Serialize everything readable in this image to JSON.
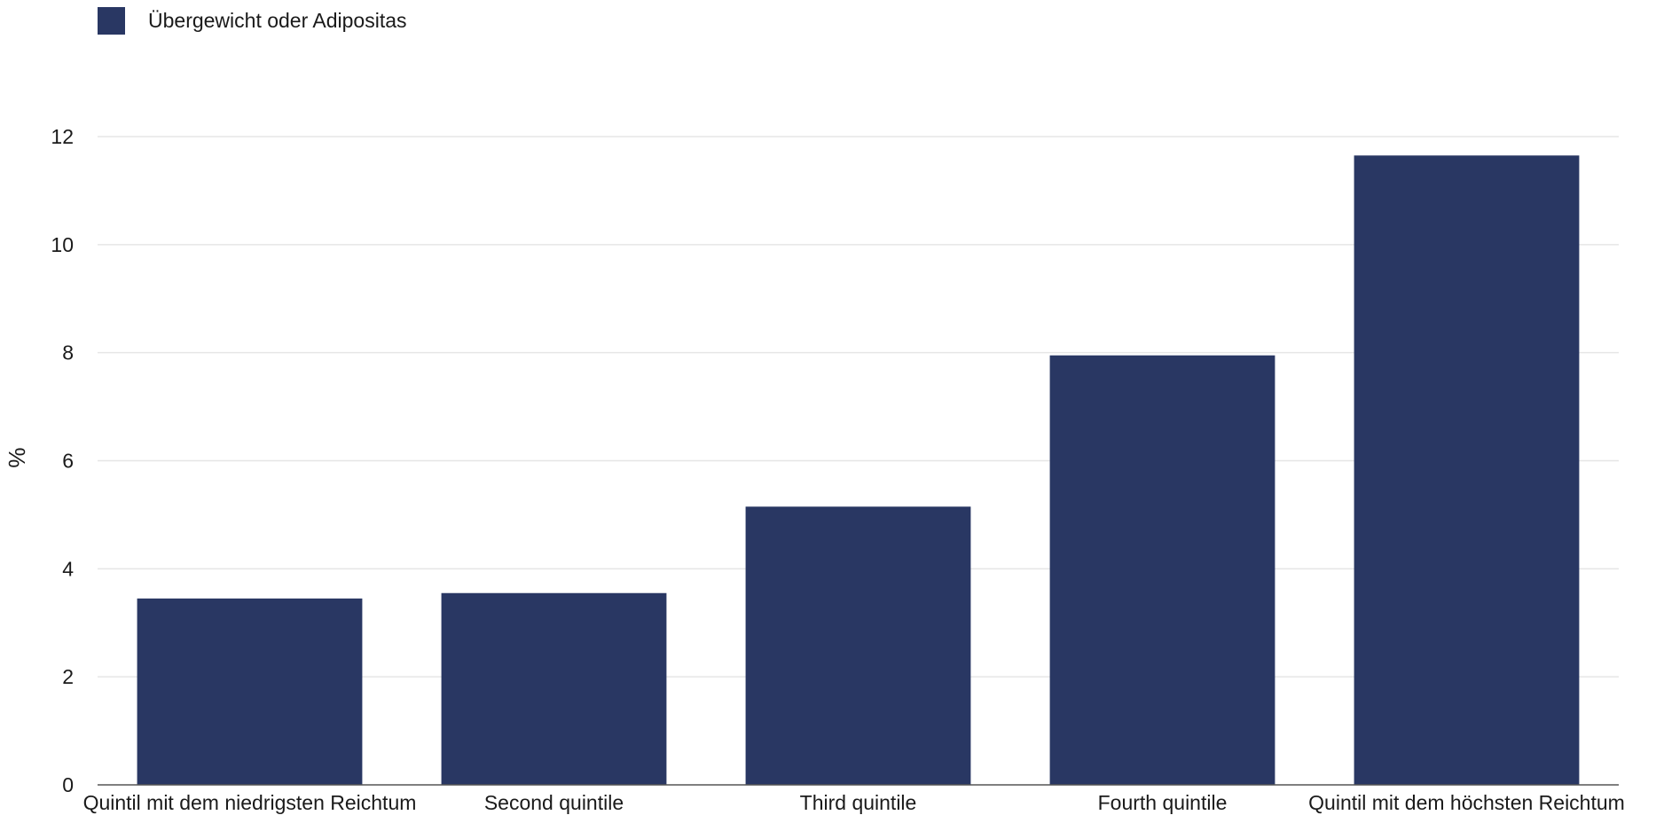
{
  "chart_data": {
    "type": "bar",
    "categories": [
      "Quintil mit dem niedrigsten Reichtum",
      "Second quintile",
      "Third quintile",
      "Fourth quintile",
      "Quintil mit dem höchsten Reichtum"
    ],
    "series": [
      {
        "name": "Übergewicht oder Adipositas",
        "values": [
          3.45,
          3.55,
          5.15,
          7.95,
          11.65
        ]
      }
    ],
    "ylabel": "%",
    "ylim": [
      0,
      12
    ],
    "yticks": [
      0,
      2,
      4,
      6,
      8,
      10,
      12
    ],
    "grid": true,
    "legend_position": "top-left",
    "bar_color": "#293763"
  }
}
